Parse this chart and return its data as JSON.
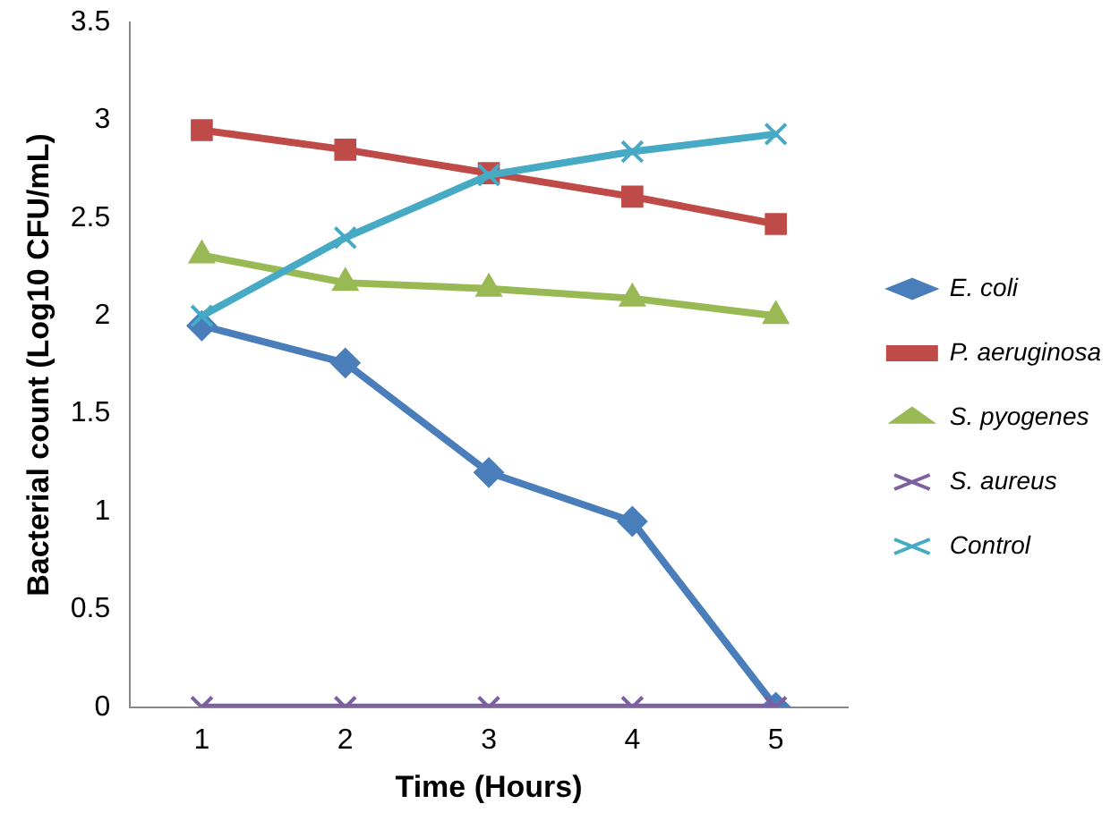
{
  "chart_data": {
    "type": "line",
    "xlabel": "Time (Hours)",
    "ylabel": "Bacterial count (Log10 CFU/mL)",
    "categories": [
      "1",
      "2",
      "3",
      "4",
      "5"
    ],
    "ylim": [
      0,
      3.5
    ],
    "yticks": [
      0,
      0.5,
      1,
      1.5,
      2,
      2.5,
      3,
      3.5
    ],
    "grid": false,
    "legend": "right",
    "line_style": "solid",
    "series": [
      {
        "name": "E. coli",
        "color": "#4a7ebb",
        "marker": "diamond",
        "values": [
          1.95,
          1.76,
          1.2,
          0.95,
          0
        ]
      },
      {
        "name": "P. aeruginosa",
        "color": "#be4b48",
        "marker": "square",
        "values": [
          2.95,
          2.85,
          2.73,
          2.61,
          2.47
        ]
      },
      {
        "name": "S. pyogenes",
        "color": "#98b954",
        "marker": "triangle",
        "values": [
          2.31,
          2.17,
          2.14,
          2.09,
          2.0
        ]
      },
      {
        "name": "S. aureus",
        "color": "#7d60a0",
        "marker": "cross",
        "values": [
          0,
          0,
          0,
          0,
          0
        ]
      },
      {
        "name": "Control",
        "color": "#46aac5",
        "marker": "cross",
        "values": [
          2.0,
          2.4,
          2.72,
          2.84,
          2.93
        ]
      }
    ]
  }
}
